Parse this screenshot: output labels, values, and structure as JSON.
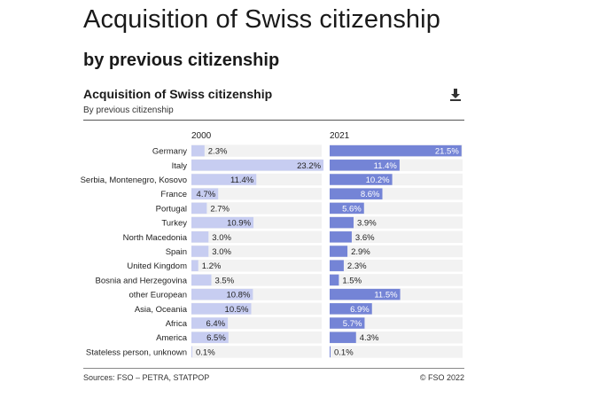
{
  "header": {
    "title": "Acquisition of Swiss citizenship",
    "subtitle": "by previous citizenship"
  },
  "chart_data": {
    "type": "bar",
    "title": "Acquisition of Swiss citizenship",
    "subtitle": "By previous citizenship",
    "categories": [
      "Germany",
      "Italy",
      "Serbia, Montenegro, Kosovo",
      "France",
      "Portugal",
      "Turkey",
      "North Macedonia",
      "Spain",
      "United Kingdom",
      "Bosnia and Herzegovina",
      "other European",
      "Asia, Oceania",
      "Africa",
      "America",
      "Stateless person, unknown"
    ],
    "series": [
      {
        "name": "2000",
        "values": [
          2.3,
          23.2,
          11.4,
          4.7,
          2.7,
          10.9,
          3.0,
          3.0,
          1.2,
          3.5,
          10.8,
          10.5,
          6.4,
          6.5,
          0.1
        ],
        "labels": [
          "2.3%",
          "23.2%",
          "11.4%",
          "4.7%",
          "2.7%",
          "10.9%",
          "3.0%",
          "3.0%",
          "1.2%",
          "3.5%",
          "10.8%",
          "10.5%",
          "6.4%",
          "6.5%",
          "0.1%"
        ],
        "color": "#c7cdf1"
      },
      {
        "name": "2021",
        "values": [
          21.5,
          11.4,
          10.2,
          8.6,
          5.6,
          3.9,
          3.6,
          2.9,
          2.3,
          1.5,
          11.5,
          6.9,
          5.7,
          4.3,
          0.1
        ],
        "labels": [
          "21.5%",
          "11.4%",
          "10.2%",
          "8.6%",
          "5.6%",
          "3.9%",
          "3.6%",
          "2.9%",
          "2.3%",
          "1.5%",
          "11.5%",
          "6.9%",
          "5.7%",
          "4.3%",
          "0.1%"
        ],
        "color": "#7484d6"
      }
    ],
    "value_unit": "%",
    "xlim": [
      0,
      25
    ]
  },
  "footer": {
    "source": "Sources: FSO – PETRA, STATPOP",
    "copyright": "© FSO 2022"
  },
  "icons": {
    "download": "download-icon"
  },
  "colors": {
    "bar_2000": "#c7cdf1",
    "bar_2021": "#7484d6",
    "row_band": "#f2f2f2",
    "text": "#1a1a1a"
  }
}
